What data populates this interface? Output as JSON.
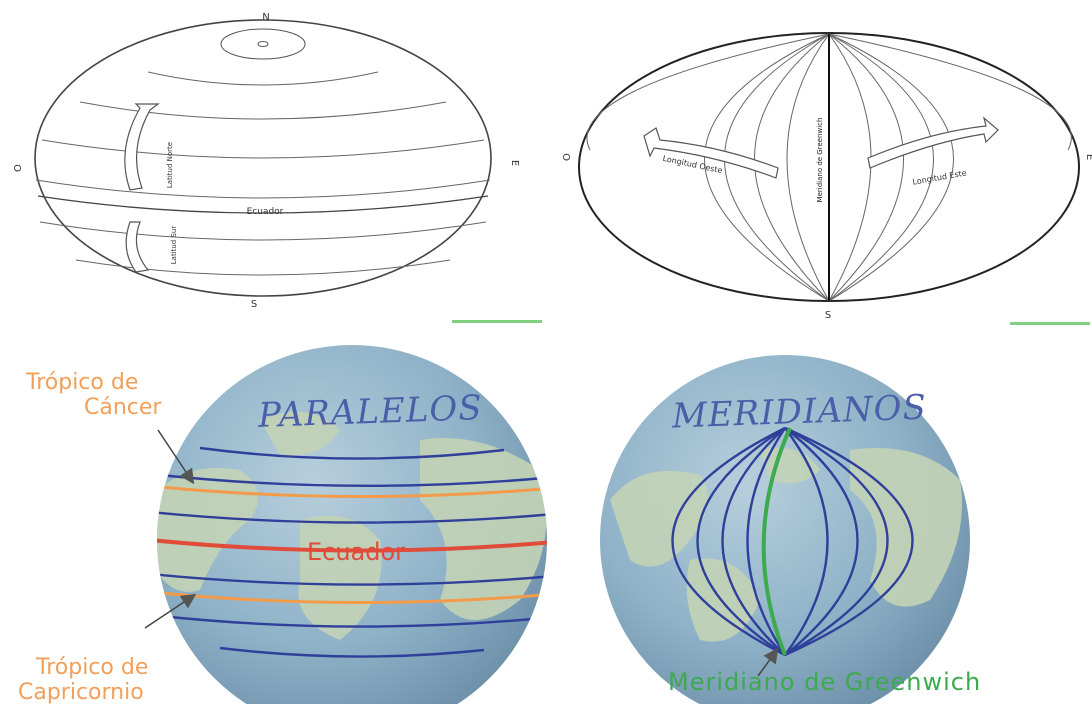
{
  "top_left": {
    "north": "N",
    "south": "S",
    "west": "O",
    "east": "E",
    "equator": "Ecuador",
    "latitude_north": "Latitud Norte",
    "latitude_south": "Latitud Sur"
  },
  "top_right": {
    "south": "S",
    "west": "O",
    "east": "E",
    "greenwich": "Meridiano de Greenwich",
    "longitude_west": "Longitud Oeste",
    "longitude_east": "Longitud Este"
  },
  "paralelos": {
    "title": "PARALELOS",
    "cancer": [
      "Trópico de",
      "Cáncer"
    ],
    "capricorn": [
      "Trópico de",
      "Capricornio"
    ],
    "equator": "Ecuador"
  },
  "meridianos": {
    "title": "MERIDIANOS",
    "greenwich": "Meridiano de Greenwich"
  },
  "colors": {
    "line_blue": "#2f3f9a",
    "tropic_orange": "#f29b4b",
    "equator_red": "#e04b3a",
    "greenwich_green": "#3caa4e",
    "ocean": "#8fb2c8",
    "land": "#c3d3b6"
  }
}
